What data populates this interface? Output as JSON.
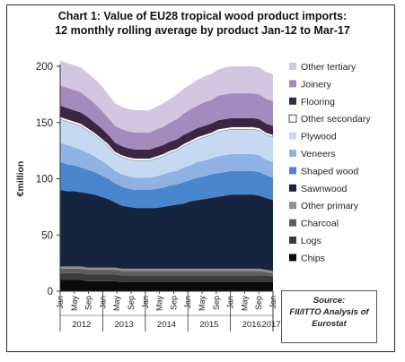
{
  "title_line1": "Chart 1: Value of EU28 tropical wood product imports:",
  "title_line2": "12 monthly rolling average by product Jan-12 to Mar-17",
  "source_line1": "Source:",
  "source_line2": "FII/ITTO Analysis of",
  "source_line3": "Eurostat",
  "chart_data": {
    "type": "area",
    "stacked": true,
    "ylabel": "€million",
    "ylim": [
      0,
      200
    ],
    "yticks": [
      0,
      50,
      100,
      150,
      200
    ],
    "grid": false,
    "legend_position": "right",
    "month_labels": [
      "Jan",
      "May",
      "Sep",
      "Jan",
      "May",
      "Sep",
      "Jan",
      "May",
      "Sep",
      "Jan",
      "May",
      "Sep",
      "Jan",
      "May",
      "Sep",
      "Jan"
    ],
    "year_labels": [
      "2012",
      "2013",
      "2014",
      "2015",
      "2016",
      "2017"
    ],
    "x": [
      "Jan-12",
      "Mar-12",
      "May-12",
      "Jul-12",
      "Sep-12",
      "Nov-12",
      "Jan-13",
      "Mar-13",
      "May-13",
      "Jul-13",
      "Sep-13",
      "Nov-13",
      "Jan-14",
      "Mar-14",
      "May-14",
      "Jul-14",
      "Sep-14",
      "Nov-14",
      "Jan-15",
      "Mar-15",
      "May-15",
      "Jul-15",
      "Sep-15",
      "Nov-15",
      "Jan-16",
      "Mar-16",
      "May-16",
      "Jul-16",
      "Sep-16",
      "Nov-16",
      "Jan-17",
      "Mar-17"
    ],
    "series": [
      {
        "name": "Chips",
        "color": "#0a0a0a",
        "values": [
          10,
          10,
          10,
          10,
          9,
          9,
          9,
          9,
          9,
          8,
          8,
          8,
          8,
          8,
          8,
          8,
          8,
          8,
          8,
          8,
          8,
          8,
          8,
          8,
          8,
          8,
          8,
          8,
          8,
          8,
          8,
          8
        ]
      },
      {
        "name": "Logs",
        "color": "#3c3c3c",
        "values": [
          6,
          6,
          6,
          6,
          6,
          6,
          6,
          6,
          6,
          6,
          6,
          6,
          6,
          6,
          6,
          6,
          6,
          6,
          6,
          6,
          6,
          6,
          6,
          6,
          6,
          6,
          6,
          6,
          6,
          6,
          6,
          5
        ]
      },
      {
        "name": "Charcoal",
        "color": "#5e5e5e",
        "values": [
          4,
          4,
          4,
          4,
          4,
          4,
          4,
          4,
          4,
          4,
          4,
          4,
          4,
          4,
          4,
          4,
          4,
          4,
          4,
          4,
          4,
          4,
          4,
          4,
          4,
          4,
          4,
          4,
          4,
          4,
          3,
          3
        ]
      },
      {
        "name": "Other primary",
        "color": "#8e8e8e",
        "values": [
          2,
          2,
          2,
          2,
          2,
          2,
          2,
          2,
          2,
          2,
          2,
          2,
          2,
          2,
          2,
          2,
          2,
          2,
          2,
          2,
          2,
          2,
          2,
          2,
          2,
          2,
          2,
          2,
          2,
          2,
          2,
          2
        ]
      },
      {
        "name": "Sawnwood",
        "color": "#16243f",
        "values": [
          68,
          67,
          67,
          66,
          66,
          65,
          63,
          61,
          58,
          56,
          55,
          54,
          54,
          54,
          54,
          55,
          56,
          57,
          58,
          60,
          61,
          62,
          63,
          64,
          65,
          66,
          66,
          66,
          66,
          65,
          64,
          63
        ]
      },
      {
        "name": "Shaped wood",
        "color": "#4a86cd",
        "values": [
          25,
          24,
          23,
          22,
          21,
          20,
          19,
          18,
          17,
          17,
          16,
          16,
          16,
          16,
          17,
          17,
          18,
          18,
          19,
          19,
          20,
          20,
          21,
          21,
          21,
          21,
          21,
          21,
          21,
          21,
          20,
          20
        ]
      },
      {
        "name": "Veneers",
        "color": "#8fb2e2",
        "values": [
          17,
          17,
          16,
          16,
          15,
          14,
          13,
          12,
          11,
          11,
          11,
          11,
          11,
          11,
          11,
          12,
          12,
          12,
          13,
          13,
          14,
          14,
          14,
          15,
          15,
          15,
          15,
          15,
          15,
          15,
          14,
          14
        ]
      },
      {
        "name": "Plywood",
        "color": "#c6d9f2",
        "values": [
          21,
          21,
          21,
          21,
          20,
          19,
          18,
          17,
          15,
          15,
          15,
          15,
          15,
          15,
          16,
          16,
          17,
          18,
          19,
          20,
          20,
          21,
          21,
          22,
          22,
          22,
          22,
          22,
          22,
          22,
          22,
          22
        ]
      },
      {
        "name": "Other secondary",
        "color": "#ffffff",
        "values": [
          2,
          2,
          2,
          2,
          2,
          2,
          2,
          2,
          2,
          2,
          2,
          2,
          2,
          2,
          2,
          2,
          2,
          2,
          2,
          2,
          2,
          2,
          2,
          2,
          2,
          2,
          2,
          2,
          2,
          2,
          2,
          2
        ]
      },
      {
        "name": "Flooring",
        "color": "#3b2744",
        "values": [
          10,
          10,
          10,
          10,
          10,
          9,
          9,
          8,
          8,
          8,
          8,
          8,
          8,
          8,
          8,
          8,
          8,
          8,
          8,
          8,
          8,
          8,
          8,
          8,
          8,
          8,
          8,
          8,
          8,
          8,
          8,
          8
        ]
      },
      {
        "name": "Joinery",
        "color": "#a48bbd",
        "values": [
          18,
          18,
          18,
          18,
          17,
          17,
          16,
          15,
          15,
          15,
          15,
          15,
          15,
          15,
          16,
          16,
          17,
          18,
          19,
          20,
          20,
          21,
          21,
          22,
          22,
          22,
          22,
          22,
          22,
          22,
          22,
          22
        ]
      },
      {
        "name": "Other tertiary",
        "color": "#d3c6e0",
        "values": [
          22,
          22,
          22,
          22,
          22,
          22,
          22,
          21,
          20,
          20,
          20,
          20,
          20,
          20,
          20,
          21,
          21,
          22,
          22,
          22,
          23,
          23,
          23,
          23,
          24,
          24,
          24,
          24,
          24,
          24,
          24,
          24
        ]
      }
    ]
  }
}
